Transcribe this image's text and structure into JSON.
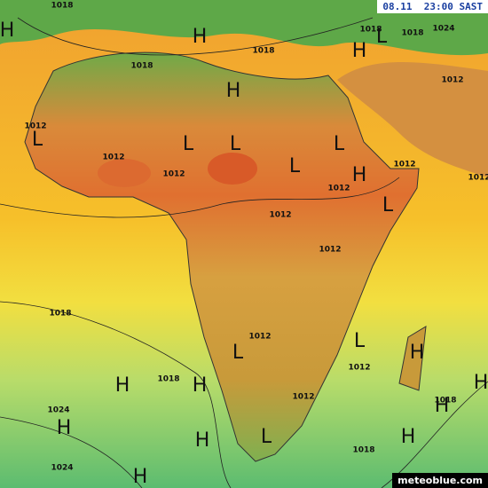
{
  "header": {
    "timestamp": "08.11  23:00 SAST"
  },
  "footer": {
    "brand": "meteoblue.com"
  },
  "pressure_centers": [
    "H",
    "H",
    "H",
    "H",
    "L",
    "L",
    "L",
    "L",
    "L",
    "H",
    "L",
    "L",
    "L",
    "H",
    "H",
    "H",
    "H",
    "H",
    "H",
    "L",
    "H",
    "H",
    "H",
    "L"
  ],
  "isobar_labels": [
    "1018",
    "1018",
    "1018",
    "1018",
    "1024",
    "1018",
    "1012",
    "1012",
    "1012",
    "1012",
    "1012",
    "1012",
    "1012",
    "1012",
    "1012",
    "1018",
    "1012",
    "1012",
    "1018",
    "1024",
    "1018",
    "1012",
    "1018",
    "1024"
  ]
}
